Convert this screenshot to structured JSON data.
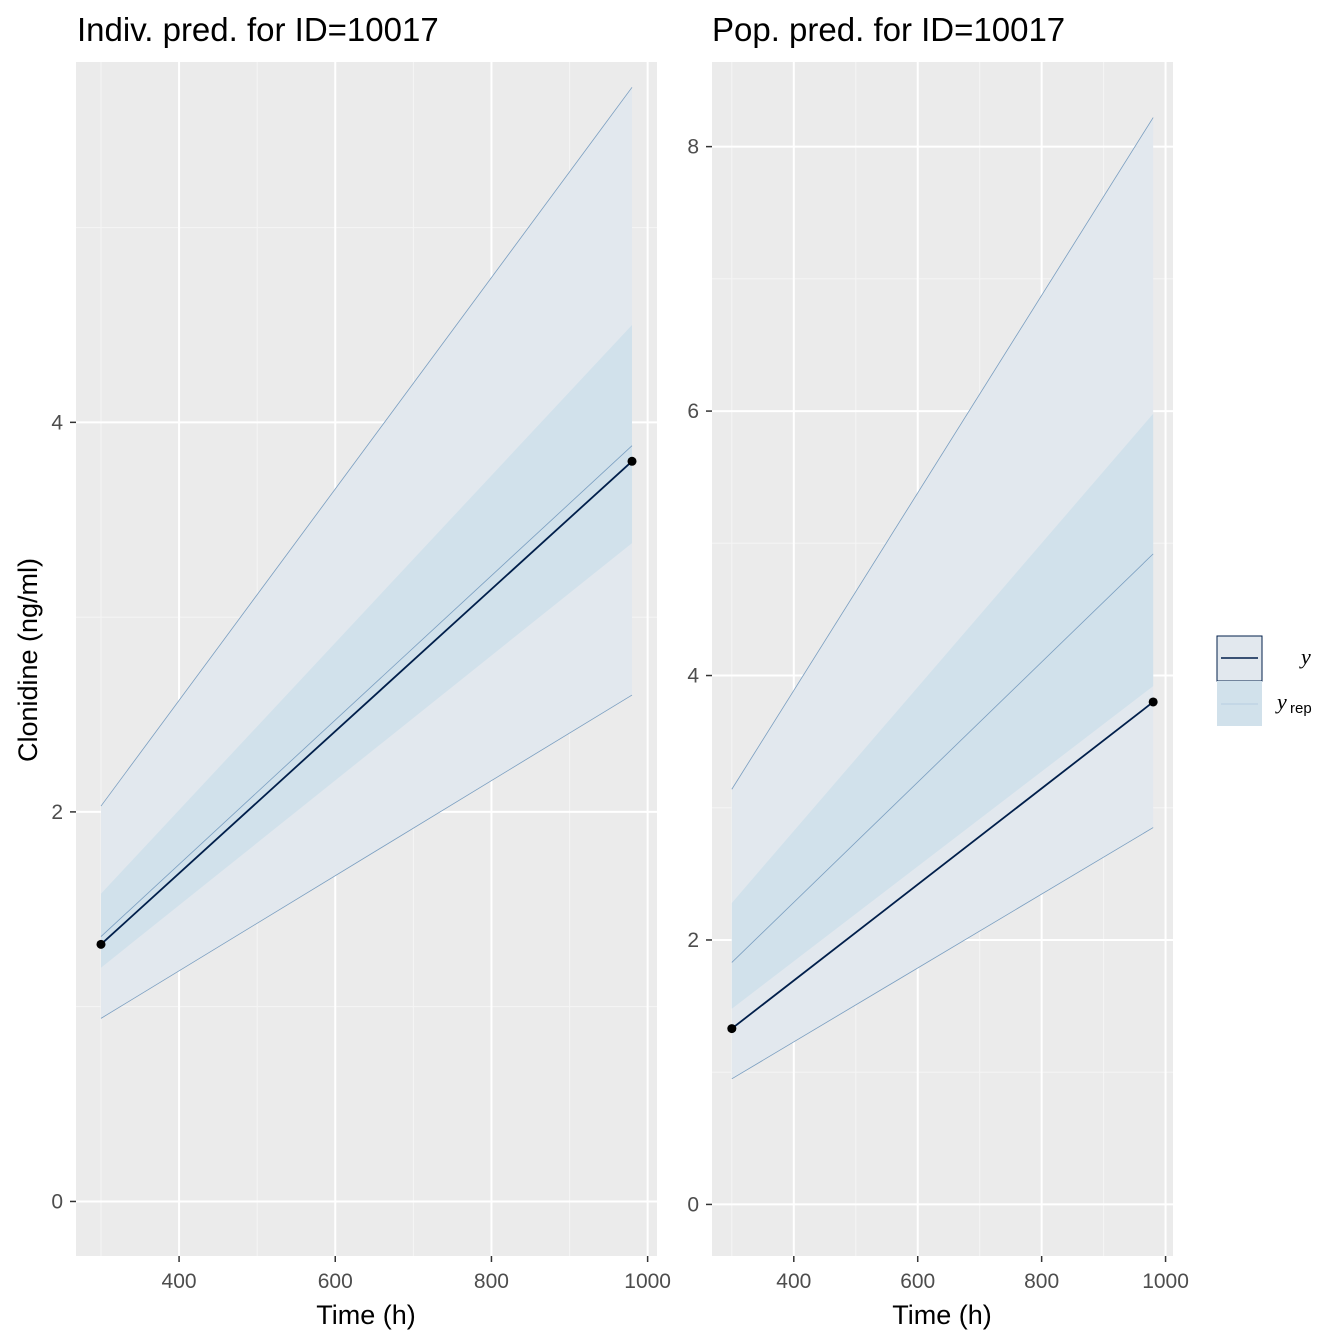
{
  "chart_data": [
    {
      "type": "line",
      "title": "Indiv. pred. for ID=10017",
      "xlabel": "Time (h)",
      "ylabel": "Clonidine (ng/ml)",
      "xlim": [
        268,
        1012
      ],
      "ylim": [
        -0.28,
        5.85
      ],
      "xticks": [
        400,
        600,
        800,
        1000
      ],
      "yticks": [
        0,
        2,
        4
      ],
      "x": [
        300,
        980
      ],
      "observed": [
        1.32,
        3.8
      ],
      "rep_median": [
        1.36,
        3.88
      ],
      "rep_inner": {
        "lower": [
          1.2,
          3.38
        ],
        "upper": [
          1.58,
          4.5
        ]
      },
      "rep_outer": {
        "lower": [
          0.94,
          2.6
        ],
        "upper": [
          2.03,
          5.72
        ]
      },
      "grid": true
    },
    {
      "type": "line",
      "title": "Pop. pred. for ID=10017",
      "xlabel": "Time (h)",
      "ylabel": "",
      "xlim": [
        268,
        1012
      ],
      "ylim": [
        -0.39,
        8.64
      ],
      "xticks": [
        400,
        600,
        800,
        1000
      ],
      "yticks": [
        0,
        2,
        4,
        6,
        8
      ],
      "x": [
        300,
        980
      ],
      "observed": [
        1.33,
        3.8
      ],
      "rep_median": [
        1.83,
        4.92
      ],
      "rep_inner": {
        "lower": [
          1.48,
          3.92
        ],
        "upper": [
          2.28,
          5.98
        ]
      },
      "rep_outer": {
        "lower": [
          0.95,
          2.85
        ],
        "upper": [
          3.14,
          8.22
        ]
      },
      "grid": true
    }
  ],
  "legend": {
    "items": [
      {
        "label": "y",
        "sub": ""
      },
      {
        "label": "y",
        "sub": "rep"
      }
    ],
    "placement": "right"
  },
  "colors": {
    "panel_bg": "#ebebeb",
    "grid_major": "#ffffff",
    "grid_minor": "#f5f5f5",
    "outer_band": "#e2e8ee",
    "inner_band": "#d1e1eb",
    "rep_line": "#7a9ec0",
    "observed": "#011f4b",
    "point": "#000000"
  }
}
